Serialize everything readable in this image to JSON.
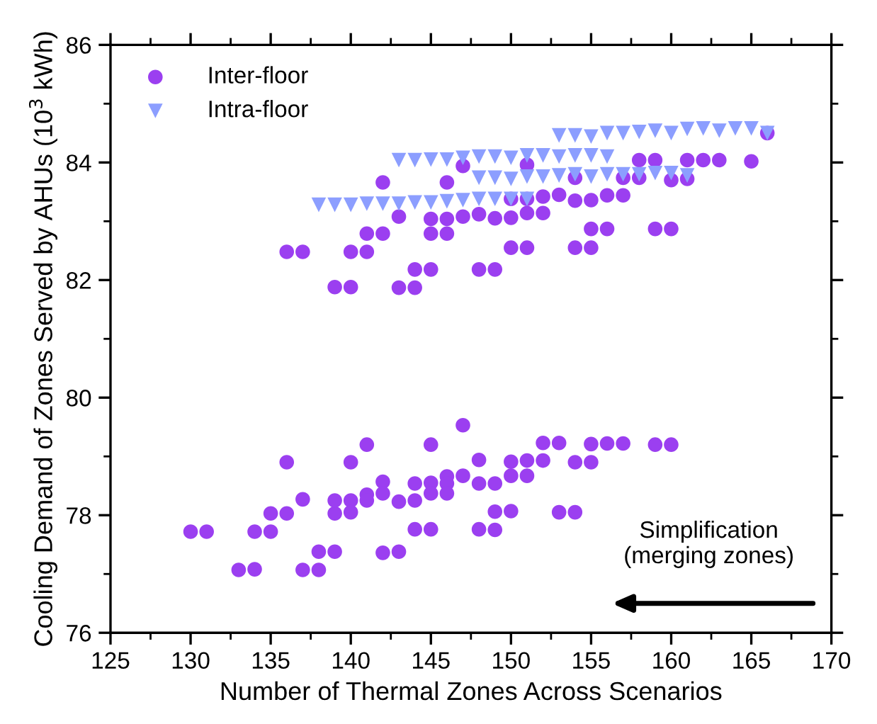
{
  "chart_data": {
    "type": "scatter",
    "xlabel": "Number of Thermal Zones Across Scenarios",
    "ylabel": "Cooling Demand of Zones Served by AHUs (10$^{3}$ kWh)",
    "xlim": [
      125,
      170
    ],
    "xticks": [
      125,
      130,
      135,
      140,
      145,
      150,
      155,
      160,
      165,
      170
    ],
    "ylim": [
      76,
      86
    ],
    "yticks": [
      76,
      78,
      80,
      82,
      84,
      86
    ],
    "legend": "top left",
    "grid": false,
    "annotations": [
      "Simplification\n(merging zones)"
    ],
    "series": [
      {
        "name": "Inter-floor",
        "color": "#9b3ff0",
        "marker": "circle",
        "x": [
          130,
          131,
          133,
          134,
          134,
          135,
          135,
          136,
          136,
          137,
          137,
          138,
          138,
          139,
          139,
          139,
          140,
          140,
          140,
          141,
          141,
          141,
          142,
          142,
          142,
          143,
          143,
          144,
          144,
          144,
          145,
          145,
          145,
          145,
          146,
          146,
          146,
          147,
          147,
          148,
          148,
          148,
          149,
          149,
          149,
          150,
          150,
          150,
          151,
          151,
          152,
          152,
          153,
          153,
          154,
          154,
          155,
          155,
          156,
          157,
          159,
          160,
          136,
          137,
          139,
          140,
          140,
          141,
          141,
          142,
          142,
          143,
          143,
          144,
          144,
          145,
          145,
          145,
          146,
          146,
          146,
          147,
          147,
          148,
          148,
          149,
          149,
          150,
          150,
          150,
          151,
          151,
          151,
          151,
          152,
          152,
          153,
          154,
          154,
          154,
          155,
          155,
          155,
          156,
          156,
          157,
          157,
          158,
          158,
          159,
          159,
          160,
          160,
          161,
          161,
          162,
          163,
          165,
          166
        ],
        "values": [
          77.72,
          77.72,
          77.07,
          77.08,
          77.72,
          77.72,
          78.03,
          78.03,
          78.9,
          78.27,
          77.07,
          77.07,
          77.38,
          77.38,
          78.03,
          78.25,
          78.25,
          78.05,
          78.9,
          78.35,
          78.25,
          79.2,
          78.57,
          78.37,
          77.36,
          78.23,
          77.38,
          78.54,
          78.25,
          77.76,
          78.55,
          78.37,
          77.76,
          79.2,
          78.66,
          78.54,
          78.37,
          79.53,
          78.67,
          78.94,
          78.54,
          77.76,
          78.54,
          77.75,
          78.06,
          78.91,
          78.67,
          78.07,
          78.93,
          78.67,
          79.23,
          78.93,
          79.23,
          78.05,
          78.9,
          78.05,
          79.21,
          78.9,
          79.22,
          79.22,
          79.2,
          79.2,
          82.48,
          82.48,
          81.88,
          81.88,
          82.48,
          82.48,
          82.79,
          82.79,
          83.66,
          83.08,
          81.87,
          81.87,
          82.18,
          82.18,
          82.79,
          83.04,
          83.66,
          82.79,
          83.04,
          83.08,
          83.94,
          83.12,
          82.18,
          83.05,
          82.18,
          83.06,
          82.55,
          83.38,
          83.38,
          83.14,
          82.55,
          83.96,
          83.42,
          83.14,
          83.45,
          83.35,
          82.55,
          83.74,
          83.36,
          82.87,
          82.55,
          83.44,
          82.87,
          83.44,
          83.74,
          84.04,
          83.74,
          84.04,
          82.87,
          82.87,
          83.7,
          84.04,
          83.72,
          84.04,
          84.04,
          84.02,
          84.5
        ]
      },
      {
        "name": "Intra-floor",
        "color": "#8c9eff",
        "marker": "triangle",
        "x": [
          138,
          139,
          140,
          141,
          142,
          143,
          144,
          145,
          146,
          147,
          148,
          149,
          150,
          151,
          143,
          144,
          145,
          146,
          147,
          148,
          149,
          150,
          151,
          152,
          153,
          154,
          155,
          156,
          148,
          149,
          150,
          151,
          152,
          153,
          154,
          155,
          156,
          157,
          158,
          159,
          160,
          161,
          153,
          154,
          155,
          156,
          157,
          158,
          159,
          160,
          161,
          162,
          163,
          164,
          165,
          166
        ],
        "values": [
          83.28,
          83.28,
          83.28,
          83.3,
          83.3,
          83.3,
          83.32,
          83.32,
          83.34,
          83.36,
          83.38,
          83.38,
          83.38,
          83.38,
          84.04,
          84.04,
          84.05,
          84.05,
          84.08,
          84.1,
          84.1,
          84.08,
          84.12,
          84.12,
          84.1,
          84.12,
          84.12,
          84.1,
          83.74,
          83.74,
          83.72,
          83.76,
          83.76,
          83.78,
          83.8,
          83.76,
          83.8,
          83.8,
          83.8,
          83.82,
          83.82,
          83.78,
          84.46,
          84.46,
          84.44,
          84.5,
          84.5,
          84.52,
          84.54,
          84.5,
          84.57,
          84.58,
          84.54,
          84.58,
          84.58,
          84.5
        ]
      }
    ]
  }
}
